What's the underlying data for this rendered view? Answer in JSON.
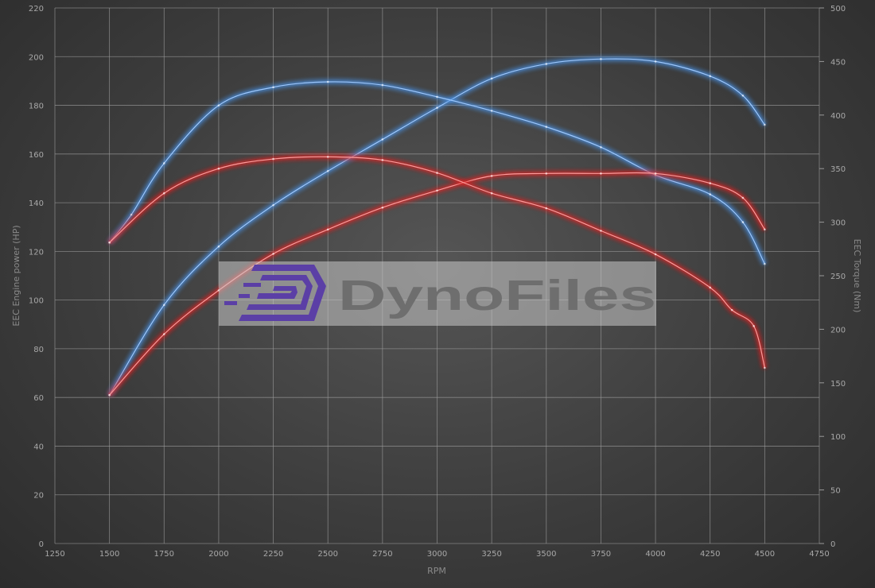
{
  "chart_data": {
    "type": "line",
    "title": "",
    "xlabel": "RPM",
    "ylabel_left": "EEC Engine power (HP)",
    "ylabel_right": "EEC Torque (Nm)",
    "xlim": [
      1250,
      4750
    ],
    "ylim_left": [
      0,
      220
    ],
    "ylim_right": [
      0,
      500
    ],
    "x_ticks": [
      1250,
      1500,
      1750,
      2000,
      2250,
      2500,
      2750,
      3000,
      3250,
      3500,
      3750,
      4000,
      4250,
      4500,
      4750
    ],
    "y_ticks_left": [
      0,
      20,
      40,
      60,
      80,
      100,
      120,
      140,
      160,
      180,
      200,
      220
    ],
    "y_ticks_right": [
      0,
      50,
      100,
      150,
      200,
      250,
      300,
      350,
      400,
      450,
      500
    ],
    "grid": true,
    "watermark": "DynoFiles",
    "series": [
      {
        "axis": "left",
        "color": "#4a90e2",
        "x": [
          1500,
          1750,
          2000,
          2250,
          2500,
          2750,
          3000,
          3250,
          3500,
          3750,
          4000,
          4250,
          4400,
          4500
        ],
        "values": [
          61,
          98,
          122,
          139,
          153,
          166,
          179,
          191,
          197,
          199,
          198,
          192,
          184,
          172
        ]
      },
      {
        "axis": "right",
        "color": "#4a90e2",
        "x": [
          1500,
          1600,
          1750,
          2000,
          2250,
          2500,
          2750,
          3000,
          3250,
          3500,
          3750,
          4000,
          4250,
          4400,
          4500
        ],
        "values": [
          281,
          307,
          355,
          409,
          426,
          431,
          428,
          417,
          404,
          389,
          370,
          344,
          326,
          300,
          261
        ]
      },
      {
        "axis": "left",
        "color": "#e02020",
        "x": [
          1500,
          1750,
          2000,
          2250,
          2500,
          2750,
          3000,
          3250,
          3500,
          3750,
          4000,
          4250,
          4400,
          4500
        ],
        "values": [
          61,
          86,
          104,
          119,
          129,
          138,
          145,
          151,
          152,
          152,
          152,
          148,
          142,
          129
        ]
      },
      {
        "axis": "right",
        "color": "#e02020",
        "x": [
          1500,
          1750,
          2000,
          2250,
          2500,
          2750,
          3000,
          3250,
          3500,
          3750,
          4000,
          4250,
          4350,
          4450,
          4500
        ],
        "values": [
          281,
          327,
          350,
          359,
          361,
          358,
          346,
          327,
          313,
          292,
          270,
          239,
          218,
          203,
          164
        ]
      }
    ]
  }
}
